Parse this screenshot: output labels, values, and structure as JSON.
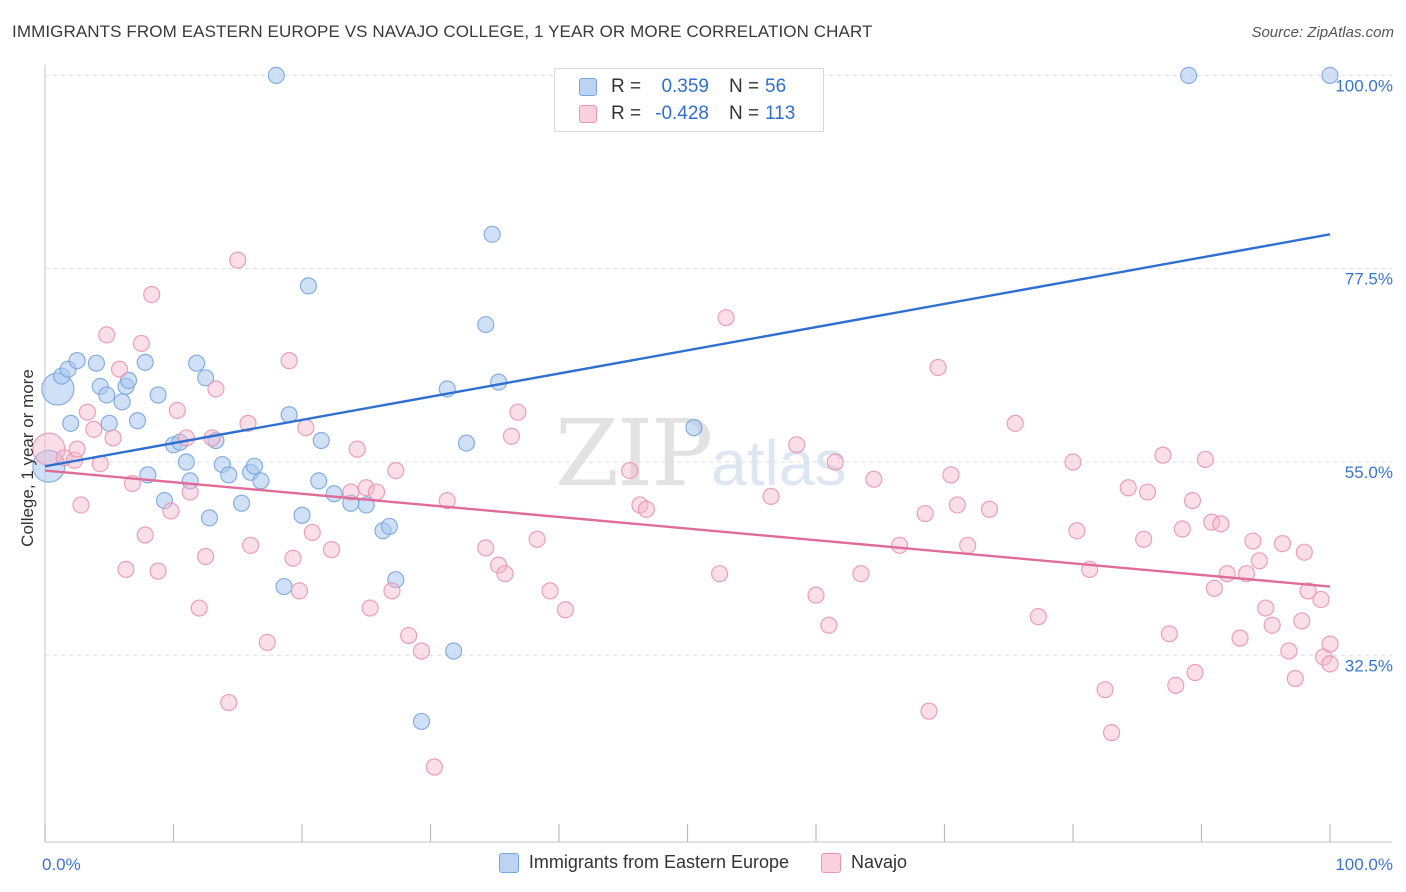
{
  "title": "IMMIGRANTS FROM EASTERN EUROPE VS NAVAJO COLLEGE, 1 YEAR OR MORE CORRELATION CHART",
  "source": "Source: ZipAtlas.com",
  "watermark": {
    "zip": "ZIP",
    "atlas": "atlas"
  },
  "legend": {
    "rows": [
      {
        "r_label": "R =",
        "r_value": "0.359",
        "n_label": "N =",
        "n_value": "56",
        "color": "#a9c8f0"
      },
      {
        "r_label": "R =",
        "r_value": "-0.428",
        "n_label": "N =",
        "n_value": "113",
        "color": "#f5b8cc"
      }
    ]
  },
  "bottom_legend": [
    "Immigrants from Eastern Europe",
    "Navajo"
  ],
  "chart_data": {
    "type": "scatter",
    "title": "IMMIGRANTS FROM EASTERN EUROPE VS NAVAJO COLLEGE, 1 YEAR OR MORE CORRELATION CHART",
    "xlabel": "",
    "ylabel": "College, 1 year or more",
    "xlim": [
      0,
      100
    ],
    "ylim": [
      10,
      102
    ],
    "x_tick_labels": [
      "0.0%",
      "100.0%"
    ],
    "y_tick_labels": [
      "32.5%",
      "55.0%",
      "77.5%",
      "100.0%"
    ],
    "y_ticks": [
      32.5,
      55.0,
      77.5,
      100.0
    ],
    "grid": true,
    "series": [
      {
        "name": "Immigrants from Eastern Europe",
        "color": "#a9c8f0",
        "stroke": "#7aa6df",
        "line_color": "#2f6fd0",
        "trend": [
          [
            0,
            54.5
          ],
          [
            100,
            81.5
          ]
        ],
        "points": [
          [
            0.3,
            54.5,
            "big"
          ],
          [
            1.0,
            63.5,
            "big"
          ],
          [
            1.3,
            65.0
          ],
          [
            2.0,
            59.5
          ],
          [
            1.8,
            65.8
          ],
          [
            2.5,
            66.8
          ],
          [
            4.0,
            66.5
          ],
          [
            4.3,
            63.8
          ],
          [
            4.8,
            62.8
          ],
          [
            5.0,
            59.5
          ],
          [
            6.0,
            62.0
          ],
          [
            6.3,
            63.8
          ],
          [
            6.5,
            64.5
          ],
          [
            7.2,
            59.8
          ],
          [
            7.8,
            66.6
          ],
          [
            8.0,
            53.5
          ],
          [
            8.8,
            62.8
          ],
          [
            9.3,
            50.5
          ],
          [
            10.0,
            57.0
          ],
          [
            10.5,
            57.3
          ],
          [
            11.0,
            55.0
          ],
          [
            11.3,
            52.8
          ],
          [
            11.8,
            66.5
          ],
          [
            12.5,
            64.8
          ],
          [
            12.8,
            48.5
          ],
          [
            13.3,
            57.5
          ],
          [
            13.8,
            54.7
          ],
          [
            14.3,
            53.5
          ],
          [
            15.3,
            50.2
          ],
          [
            16.0,
            53.8
          ],
          [
            16.3,
            54.5
          ],
          [
            16.8,
            52.8
          ],
          [
            18.0,
            100.0
          ],
          [
            18.6,
            40.5
          ],
          [
            19.0,
            60.5
          ],
          [
            20.0,
            48.8
          ],
          [
            20.5,
            75.5
          ],
          [
            21.3,
            52.8
          ],
          [
            21.5,
            57.5
          ],
          [
            22.5,
            51.3
          ],
          [
            23.8,
            50.2
          ],
          [
            25.0,
            50.0
          ],
          [
            26.3,
            47.0
          ],
          [
            26.8,
            47.5
          ],
          [
            27.3,
            41.3
          ],
          [
            29.3,
            24.8
          ],
          [
            31.3,
            63.5
          ],
          [
            31.8,
            33.0
          ],
          [
            32.8,
            57.2
          ],
          [
            34.3,
            71.0
          ],
          [
            34.8,
            81.5
          ],
          [
            35.3,
            64.3
          ],
          [
            50.5,
            59.0
          ],
          [
            89.0,
            100.0
          ],
          [
            100.0,
            100.0
          ]
        ]
      },
      {
        "name": "Navajo",
        "color": "#f5b8cc",
        "stroke": "#e996b3",
        "line_color": "#e06d98",
        "trend": [
          [
            0,
            54.0
          ],
          [
            100,
            40.5
          ]
        ],
        "points": [
          [
            0.3,
            56.5,
            "big"
          ],
          [
            1.5,
            55.5
          ],
          [
            2.3,
            55.2
          ],
          [
            2.5,
            56.5
          ],
          [
            2.8,
            50.0
          ],
          [
            3.3,
            60.8
          ],
          [
            3.8,
            58.8
          ],
          [
            4.3,
            54.8
          ],
          [
            4.8,
            69.8
          ],
          [
            5.3,
            57.8
          ],
          [
            5.8,
            65.8
          ],
          [
            6.3,
            42.5
          ],
          [
            6.8,
            52.5
          ],
          [
            7.5,
            68.8
          ],
          [
            7.8,
            46.5
          ],
          [
            8.3,
            74.5
          ],
          [
            8.8,
            42.3
          ],
          [
            9.8,
            49.3
          ],
          [
            10.3,
            61.0
          ],
          [
            11.0,
            57.8
          ],
          [
            11.3,
            51.5
          ],
          [
            12.0,
            38.0
          ],
          [
            12.5,
            44.0
          ],
          [
            13.0,
            57.8
          ],
          [
            13.3,
            63.5
          ],
          [
            14.3,
            27.0
          ],
          [
            15.0,
            78.5
          ],
          [
            15.8,
            59.5
          ],
          [
            16.0,
            45.3
          ],
          [
            17.3,
            34.0
          ],
          [
            19.0,
            66.8
          ],
          [
            19.3,
            43.8
          ],
          [
            19.8,
            40.0
          ],
          [
            20.3,
            59.0
          ],
          [
            20.8,
            46.8
          ],
          [
            22.3,
            44.8
          ],
          [
            23.8,
            51.5
          ],
          [
            24.3,
            56.5
          ],
          [
            25.0,
            52.0
          ],
          [
            25.3,
            38.0
          ],
          [
            25.8,
            51.5
          ],
          [
            27.0,
            40.0
          ],
          [
            27.3,
            54.0
          ],
          [
            28.3,
            34.8
          ],
          [
            29.3,
            33.0
          ],
          [
            30.3,
            19.5
          ],
          [
            31.3,
            50.5
          ],
          [
            34.3,
            45.0
          ],
          [
            35.3,
            43.0
          ],
          [
            35.8,
            42.0
          ],
          [
            36.3,
            58.0
          ],
          [
            36.8,
            60.8
          ],
          [
            38.3,
            46.0
          ],
          [
            39.3,
            40.0
          ],
          [
            40.5,
            37.8
          ],
          [
            45.5,
            54.0
          ],
          [
            46.3,
            50.0
          ],
          [
            46.8,
            49.5
          ],
          [
            52.5,
            42.0
          ],
          [
            53.0,
            71.8
          ],
          [
            56.5,
            51.0
          ],
          [
            58.5,
            57.0
          ],
          [
            60.0,
            39.5
          ],
          [
            61.0,
            36.0
          ],
          [
            61.5,
            55.0
          ],
          [
            63.5,
            42.0
          ],
          [
            64.5,
            53.0
          ],
          [
            66.5,
            45.3
          ],
          [
            68.5,
            49.0
          ],
          [
            68.8,
            26.0
          ],
          [
            69.5,
            66.0
          ],
          [
            70.5,
            53.5
          ],
          [
            71.0,
            50.0
          ],
          [
            71.8,
            45.3
          ],
          [
            73.5,
            49.5
          ],
          [
            75.5,
            59.5
          ],
          [
            77.3,
            37.0
          ],
          [
            80.0,
            55.0
          ],
          [
            80.3,
            47.0
          ],
          [
            81.3,
            42.5
          ],
          [
            82.5,
            28.5
          ],
          [
            83.0,
            23.5
          ],
          [
            84.3,
            52.0
          ],
          [
            85.5,
            46.0
          ],
          [
            85.8,
            51.5
          ],
          [
            87.0,
            55.8
          ],
          [
            87.5,
            35.0
          ],
          [
            88.0,
            29.0
          ],
          [
            88.5,
            47.2
          ],
          [
            89.3,
            50.5
          ],
          [
            89.5,
            30.5
          ],
          [
            90.3,
            55.3
          ],
          [
            90.8,
            48.0
          ],
          [
            91.0,
            40.3
          ],
          [
            91.5,
            47.8
          ],
          [
            92.0,
            42.0
          ],
          [
            93.0,
            34.5
          ],
          [
            93.5,
            42.0
          ],
          [
            94.0,
            45.8
          ],
          [
            94.5,
            43.5
          ],
          [
            95.0,
            38.0
          ],
          [
            95.5,
            36.0
          ],
          [
            96.3,
            45.5
          ],
          [
            96.8,
            33.0
          ],
          [
            97.3,
            29.8
          ],
          [
            97.8,
            36.5
          ],
          [
            98.3,
            40.0
          ],
          [
            99.3,
            39.0
          ],
          [
            99.5,
            32.3
          ],
          [
            100.0,
            31.5
          ],
          [
            98.0,
            44.5
          ],
          [
            100.0,
            33.8
          ]
        ]
      }
    ]
  }
}
